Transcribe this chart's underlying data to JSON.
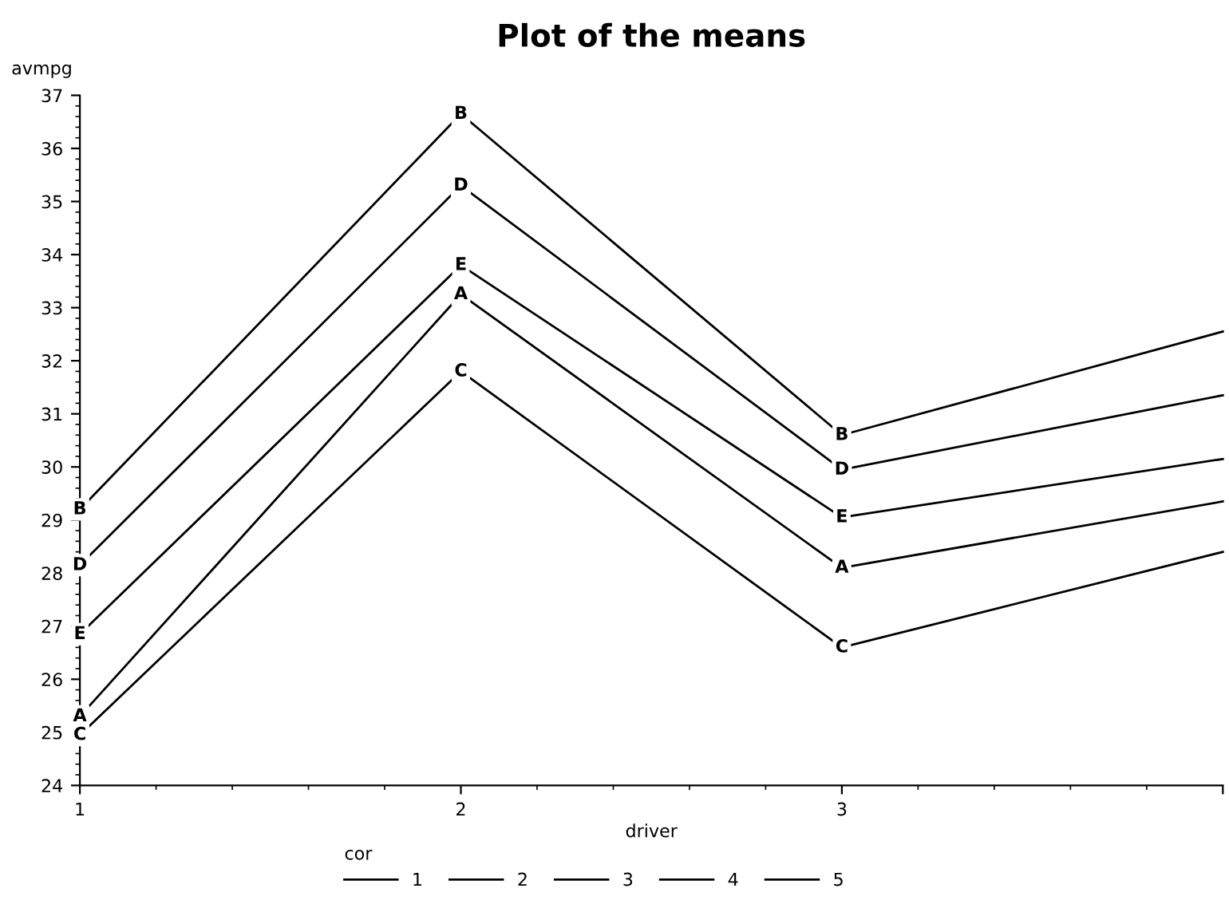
{
  "chart_data": {
    "type": "line",
    "title": "Plot of the means",
    "xlabel": "driver",
    "ylabel": "avmpg",
    "legend_title": "cor",
    "x": [
      1,
      2,
      3,
      4
    ],
    "series": [
      {
        "name": "1",
        "color": "#000000",
        "values": [
          25.3,
          33.25,
          28.1,
          29.35
        ]
      },
      {
        "name": "2",
        "color": "#000000",
        "values": [
          29.2,
          36.65,
          30.6,
          32.55
        ]
      },
      {
        "name": "3",
        "color": "#000000",
        "values": [
          24.95,
          31.8,
          26.6,
          28.4
        ]
      },
      {
        "name": "4",
        "color": "#000000",
        "values": [
          28.15,
          35.3,
          29.95,
          31.35
        ]
      },
      {
        "name": "5",
        "color": "#000000",
        "values": [
          26.85,
          33.8,
          29.05,
          30.15
        ]
      }
    ],
    "annotations": [
      {
        "text": "A",
        "x": 1,
        "y": 25.3
      },
      {
        "text": "A",
        "x": 2,
        "y": 33.25
      },
      {
        "text": "A",
        "x": 3,
        "y": 28.1
      },
      {
        "text": "B",
        "x": 1,
        "y": 29.2
      },
      {
        "text": "B",
        "x": 2,
        "y": 36.65
      },
      {
        "text": "B",
        "x": 3,
        "y": 30.6
      },
      {
        "text": "C",
        "x": 1,
        "y": 24.95
      },
      {
        "text": "C",
        "x": 2,
        "y": 31.8
      },
      {
        "text": "C",
        "x": 3,
        "y": 26.6
      },
      {
        "text": "D",
        "x": 1,
        "y": 28.15
      },
      {
        "text": "D",
        "x": 2,
        "y": 35.3
      },
      {
        "text": "D",
        "x": 3,
        "y": 29.95
      },
      {
        "text": "E",
        "x": 1,
        "y": 26.85
      },
      {
        "text": "E",
        "x": 2,
        "y": 33.8
      },
      {
        "text": "E",
        "x": 3,
        "y": 29.05
      }
    ],
    "xlim": [
      1,
      4
    ],
    "xticks": [
      1,
      2,
      3,
      {
        "value": 4,
        "label": null
      }
    ],
    "ylim": [
      24,
      37
    ],
    "yticks": [
      24,
      25,
      26,
      27,
      28,
      29,
      30,
      31,
      32,
      33,
      34,
      35,
      36,
      37
    ],
    "grid": false,
    "legend": "bottom",
    "line_style": "solid"
  }
}
